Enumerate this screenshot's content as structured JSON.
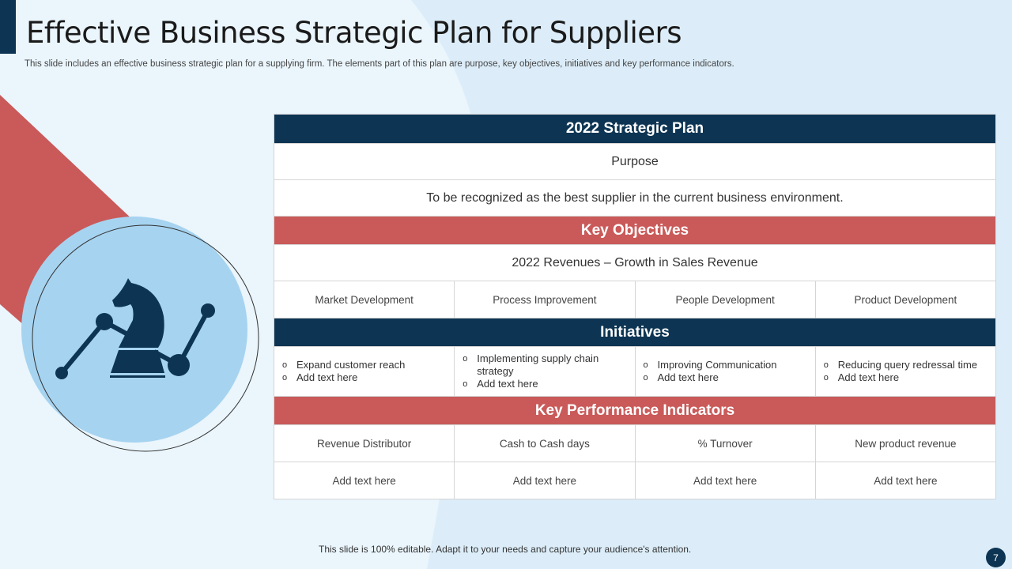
{
  "header": {
    "title": "Effective Business Strategic Plan for Suppliers",
    "subtitle": "This slide includes an effective business strategic plan for a supplying firm. The elements part of this plan are purpose, key objectives, initiatives and key performance indicators."
  },
  "icon": "chess-knight-growth-chart-icon",
  "colors": {
    "navy": "#0d3553",
    "red": "#c95a59",
    "light_blue": "#a6d3f0"
  },
  "table": {
    "title": "2022 Strategic Plan",
    "purpose_label": "Purpose",
    "purpose_text": "To be recognized as the best supplier in the current business environment.",
    "objectives_header": "Key Objectives",
    "objectives_text": "2022 Revenues – Growth in Sales Revenue",
    "objectives": [
      "Market Development",
      "Process Improvement",
      "People Development",
      "Product Development"
    ],
    "initiatives_header": "Initiatives",
    "initiatives": [
      [
        "Expand customer reach",
        "Add text here"
      ],
      [
        "Implementing supply chain strategy",
        "Add text here"
      ],
      [
        "Improving  Communication",
        "Add text here"
      ],
      [
        "Reducing query redressal time",
        "Add text here"
      ]
    ],
    "kpi_header": "Key Performance Indicators",
    "kpis": [
      "Revenue  Distributor",
      "Cash to Cash days",
      "% Turnover",
      "New product revenue"
    ],
    "kpi_values": [
      "Add text here",
      "Add text here",
      "Add text here",
      "Add text here"
    ]
  },
  "footer": {
    "note": "This slide is 100% editable. Adapt it to your needs and capture your audience's attention.",
    "page": "7"
  }
}
